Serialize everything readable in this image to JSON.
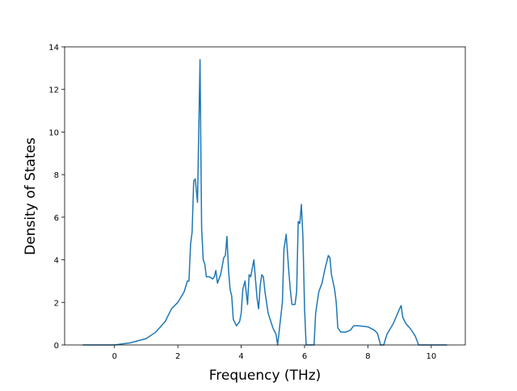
{
  "chart_data": {
    "type": "line",
    "xlabel": "Frequency (THz)",
    "ylabel": "Density of States",
    "x": [
      -1.0,
      0,
      0.5,
      1.0,
      1.3,
      1.6,
      1.8,
      2.0,
      2.2,
      2.3,
      2.35,
      2.4,
      2.45,
      2.5,
      2.55,
      2.6,
      2.62,
      2.7,
      2.75,
      2.8,
      2.85,
      2.9,
      3.0,
      3.1,
      3.15,
      3.2,
      3.25,
      3.35,
      3.45,
      3.5,
      3.55,
      3.6,
      3.65,
      3.7,
      3.75,
      3.85,
      3.95,
      4.0,
      4.05,
      4.12,
      4.2,
      4.25,
      4.3,
      4.4,
      4.45,
      4.5,
      4.55,
      4.6,
      4.65,
      4.7,
      4.75,
      4.85,
      5.0,
      5.1,
      5.15,
      5.3,
      5.35,
      5.42,
      5.5,
      5.55,
      5.6,
      5.7,
      5.75,
      5.8,
      5.85,
      5.9,
      5.95,
      6.0,
      6.05,
      6.3,
      6.35,
      6.45,
      6.55,
      6.65,
      6.75,
      6.8,
      6.85,
      6.95,
      7.0,
      7.05,
      7.15,
      7.3,
      7.45,
      7.55,
      7.7,
      8.0,
      8.2,
      8.3,
      8.4,
      8.5,
      8.6,
      8.8,
      9.0,
      9.05,
      9.1,
      9.2,
      9.35,
      9.5,
      9.6,
      10.5
    ],
    "series": [
      {
        "color": "#1f77b4",
        "values": [
          0,
          0,
          0.1,
          0.3,
          0.6,
          1.1,
          1.7,
          2.0,
          2.5,
          3.0,
          3.0,
          4.7,
          5.3,
          7.7,
          7.8,
          7.0,
          6.7,
          13.4,
          5.5,
          4.0,
          3.8,
          3.2,
          3.2,
          3.1,
          3.2,
          3.5,
          2.9,
          3.3,
          4.1,
          4.2,
          5.1,
          3.5,
          2.6,
          2.3,
          1.2,
          0.9,
          1.1,
          1.5,
          2.6,
          3.0,
          1.9,
          3.3,
          3.2,
          4.0,
          3.1,
          2.2,
          1.7,
          2.8,
          3.3,
          3.2,
          2.5,
          1.5,
          0.8,
          0.5,
          0.0,
          2.0,
          4.5,
          5.2,
          3.5,
          2.6,
          1.9,
          1.9,
          2.5,
          5.8,
          5.7,
          6.6,
          5.0,
          1.7,
          0.0,
          0.0,
          1.5,
          2.5,
          2.9,
          3.6,
          4.2,
          4.1,
          3.3,
          2.6,
          2.0,
          0.8,
          0.6,
          0.6,
          0.7,
          0.9,
          0.9,
          0.85,
          0.7,
          0.55,
          0.0,
          0.0,
          0.5,
          1.0,
          1.7,
          1.85,
          1.3,
          1.0,
          0.75,
          0.4,
          0.0,
          0.0
        ]
      }
    ],
    "xlim": [
      -1.575,
      11.075
    ],
    "ylim": [
      0,
      14
    ],
    "xticks": [
      0,
      2,
      4,
      6,
      8,
      10
    ],
    "yticks": [
      0,
      2,
      4,
      6,
      8,
      10,
      12,
      14
    ],
    "grid": false
  }
}
